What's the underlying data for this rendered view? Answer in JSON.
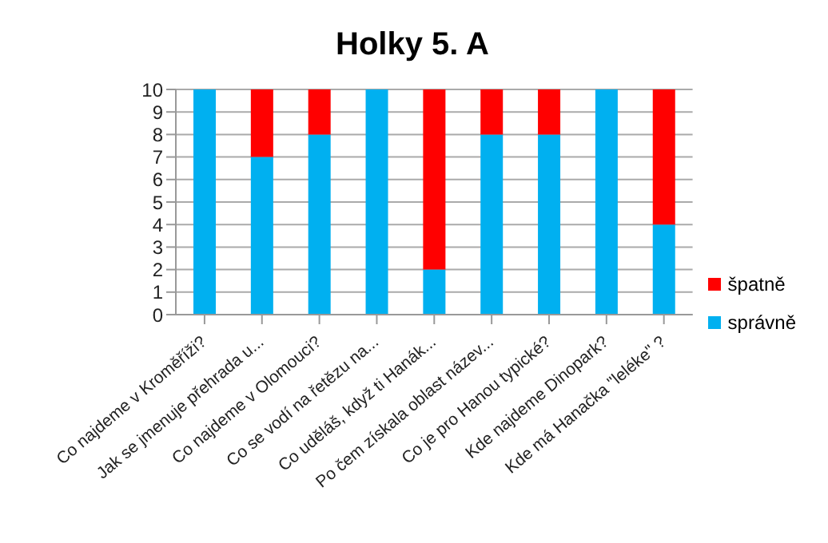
{
  "chart_data": {
    "type": "bar",
    "title": "Holky 5. A",
    "stacked": true,
    "categories": [
      "Co najdeme v Kroměříži?",
      "Jak se jmenuje přehrada u...",
      "Co najdeme v Olomouci?",
      "Co se vodí na řetězu na...",
      "Co uděláš, když ti Hanák...",
      "Po čem získala oblast název...",
      "Co je pro Hanou typické?",
      "Kde najdeme Dinopark?",
      "Kde má Hanačka \"leléke\" ?"
    ],
    "series": [
      {
        "name": "správně",
        "color": "#00b0f0",
        "values": [
          10,
          7,
          8,
          10,
          2,
          8,
          8,
          10,
          4
        ]
      },
      {
        "name": "špatně",
        "color": "#ff0000",
        "values": [
          0,
          3,
          2,
          0,
          8,
          2,
          2,
          0,
          6
        ]
      }
    ],
    "ylim": [
      0,
      10
    ],
    "yticks": [
      0,
      1,
      2,
      3,
      4,
      5,
      6,
      7,
      8,
      9,
      10
    ],
    "grid": "y",
    "legend": "right"
  }
}
